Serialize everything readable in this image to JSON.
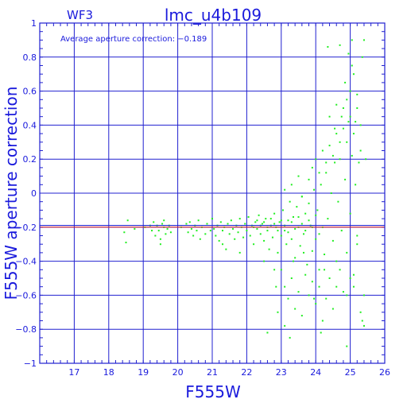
{
  "colors": {
    "frame": "#2020d0",
    "grid": "#2020d0",
    "text": "#1a1adc",
    "points": "#22ee22",
    "reference_line": "#e02020",
    "mean_line": "#2020d0"
  },
  "chart_data": {
    "type": "scatter",
    "header_left": "WF3",
    "title": "lmc_u4b109",
    "annotation": "Average aperture correction: −0.189",
    "xlabel": "F555W",
    "ylabel": "F555W aperture correction",
    "xlim": [
      16,
      26
    ],
    "ylim": [
      -1,
      1
    ],
    "xticks": [
      17,
      18,
      19,
      20,
      21,
      22,
      23,
      24,
      25,
      26
    ],
    "yticks": [
      -1,
      -0.8,
      -0.6,
      -0.4,
      -0.2,
      0,
      0.2,
      0.4,
      0.6,
      0.8,
      1
    ],
    "xtick_labels": [
      "17",
      "18",
      "19",
      "20",
      "21",
      "22",
      "23",
      "24",
      "25",
      "26"
    ],
    "ytick_labels": [
      "−1",
      "−0.8",
      "−0.6",
      "−0.4",
      "−0.2",
      "0",
      "0.2",
      "0.4",
      "0.6",
      "0.8",
      "1"
    ],
    "grid": true,
    "reference_lines": [
      {
        "y": -0.189,
        "color": "#2020d0"
      },
      {
        "y": -0.2,
        "color": "#e02020"
      }
    ],
    "points": [
      [
        18.45,
        -0.23
      ],
      [
        18.5,
        -0.29
      ],
      [
        18.55,
        -0.16
      ],
      [
        18.75,
        -0.21
      ],
      [
        19.05,
        -0.2
      ],
      [
        19.2,
        -0.19
      ],
      [
        19.25,
        -0.22
      ],
      [
        19.3,
        -0.17
      ],
      [
        19.35,
        -0.25
      ],
      [
        19.4,
        -0.19
      ],
      [
        19.45,
        -0.22
      ],
      [
        19.5,
        -0.27
      ],
      [
        19.55,
        -0.18
      ],
      [
        19.6,
        -0.2
      ],
      [
        19.65,
        -0.24
      ],
      [
        19.7,
        -0.21
      ],
      [
        19.75,
        -0.19
      ],
      [
        19.8,
        -0.23
      ],
      [
        19.5,
        -0.3
      ],
      [
        19.6,
        -0.16
      ],
      [
        20.1,
        -0.2
      ],
      [
        20.25,
        -0.18
      ],
      [
        20.3,
        -0.23
      ],
      [
        20.35,
        -0.17
      ],
      [
        20.4,
        -0.21
      ],
      [
        20.45,
        -0.25
      ],
      [
        20.5,
        -0.19
      ],
      [
        20.55,
        -0.22
      ],
      [
        20.6,
        -0.16
      ],
      [
        20.65,
        -0.27
      ],
      [
        20.7,
        -0.2
      ],
      [
        20.8,
        -0.24
      ],
      [
        20.85,
        -0.18
      ],
      [
        20.95,
        -0.22
      ],
      [
        21.0,
        -0.15
      ],
      [
        21.05,
        -0.21
      ],
      [
        21.1,
        -0.25
      ],
      [
        21.15,
        -0.19
      ],
      [
        21.2,
        -0.28
      ],
      [
        21.25,
        -0.17
      ],
      [
        21.3,
        -0.22
      ],
      [
        21.35,
        -0.2
      ],
      [
        21.4,
        -0.33
      ],
      [
        21.45,
        -0.18
      ],
      [
        21.5,
        -0.24
      ],
      [
        21.55,
        -0.16
      ],
      [
        21.6,
        -0.21
      ],
      [
        21.65,
        -0.27
      ],
      [
        21.7,
        -0.19
      ],
      [
        21.75,
        -0.23
      ],
      [
        21.8,
        -0.15
      ],
      [
        21.85,
        -0.2
      ],
      [
        21.9,
        -0.26
      ],
      [
        21.95,
        -0.18
      ],
      [
        22.0,
        -0.22
      ],
      [
        22.05,
        -0.14
      ],
      [
        22.1,
        -0.25
      ],
      [
        22.15,
        -0.19
      ],
      [
        22.2,
        -0.3
      ],
      [
        22.25,
        -0.17
      ],
      [
        22.3,
        -0.21
      ],
      [
        22.35,
        -0.13
      ],
      [
        22.4,
        -0.24
      ],
      [
        22.45,
        -0.18
      ],
      [
        22.5,
        -0.28
      ],
      [
        22.55,
        -0.15
      ],
      [
        22.6,
        -0.22
      ],
      [
        22.65,
        -0.33
      ],
      [
        22.7,
        -0.19
      ],
      [
        22.75,
        -0.26
      ],
      [
        22.8,
        -0.12
      ],
      [
        22.85,
        -0.2
      ],
      [
        22.9,
        -0.35
      ],
      [
        22.95,
        -0.17
      ],
      [
        23.0,
        -0.25
      ],
      [
        23.05,
        -0.1
      ],
      [
        23.1,
        -0.22
      ],
      [
        23.15,
        -0.3
      ],
      [
        23.2,
        -0.16
      ],
      [
        23.25,
        -0.05
      ],
      [
        23.3,
        -0.27
      ],
      [
        23.35,
        -0.14
      ],
      [
        23.4,
        -0.38
      ],
      [
        23.45,
        -0.08
      ],
      [
        23.5,
        -0.2
      ],
      [
        23.55,
        -0.31
      ],
      [
        23.6,
        -0.02
      ],
      [
        23.65,
        -0.24
      ],
      [
        23.7,
        -0.12
      ],
      [
        23.75,
        -0.42
      ],
      [
        23.8,
        -0.06
      ],
      [
        23.85,
        -0.19
      ],
      [
        23.9,
        -0.34
      ],
      [
        23.95,
        0.02
      ],
      [
        24.0,
        -0.27
      ],
      [
        24.05,
        -0.1
      ],
      [
        24.1,
        -0.45
      ],
      [
        24.15,
        0.05
      ],
      [
        24.2,
        -0.2
      ],
      [
        24.25,
        -0.36
      ],
      [
        24.3,
        0.12
      ],
      [
        24.35,
        -0.15
      ],
      [
        24.4,
        -0.5
      ],
      [
        24.45,
        0.0
      ],
      [
        24.5,
        -0.28
      ],
      [
        24.55,
        0.18
      ],
      [
        24.6,
        -0.4
      ],
      [
        24.65,
        -0.05
      ],
      [
        24.7,
        0.3
      ],
      [
        24.75,
        -0.22
      ],
      [
        24.8,
        -0.58
      ],
      [
        24.85,
        0.08
      ],
      [
        24.9,
        -0.35
      ],
      [
        24.95,
        0.42
      ],
      [
        25.0,
        -0.12
      ],
      [
        25.05,
        0.22
      ],
      [
        25.1,
        -0.48
      ],
      [
        25.15,
        0.05
      ],
      [
        25.2,
        -0.3
      ],
      [
        25.25,
        0.18
      ],
      [
        22.2,
        -0.2
      ],
      [
        22.3,
        -0.16
      ],
      [
        22.4,
        -0.19
      ],
      [
        22.5,
        -0.17
      ],
      [
        22.6,
        -0.2
      ],
      [
        22.7,
        -0.15
      ],
      [
        22.8,
        -0.18
      ],
      [
        22.9,
        -0.22
      ],
      [
        23.0,
        -0.16
      ],
      [
        23.1,
        -0.19
      ],
      [
        23.2,
        -0.23
      ],
      [
        23.3,
        -0.17
      ],
      [
        23.4,
        -0.21
      ],
      [
        23.5,
        -0.14
      ],
      [
        23.6,
        -0.18
      ],
      [
        23.7,
        -0.22
      ],
      [
        23.8,
        -0.16
      ],
      [
        23.9,
        -0.2
      ],
      [
        24.0,
        -0.13
      ],
      [
        24.1,
        -0.24
      ],
      [
        23.0,
        -0.45
      ],
      [
        23.1,
        -0.55
      ],
      [
        23.2,
        -0.62
      ],
      [
        23.3,
        -0.5
      ],
      [
        23.4,
        -0.68
      ],
      [
        23.5,
        -0.58
      ],
      [
        23.6,
        -0.72
      ],
      [
        23.7,
        -0.48
      ],
      [
        23.8,
        -0.6
      ],
      [
        23.9,
        -0.52
      ],
      [
        24.0,
        -0.65
      ],
      [
        24.1,
        -0.55
      ],
      [
        24.2,
        -0.75
      ],
      [
        24.3,
        -0.62
      ],
      [
        24.5,
        -0.68
      ],
      [
        24.7,
        -0.45
      ],
      [
        24.9,
        -0.6
      ],
      [
        25.1,
        -0.55
      ],
      [
        25.3,
        -0.7
      ],
      [
        23.95,
        -0.62
      ],
      [
        23.1,
        0.02
      ],
      [
        23.3,
        0.05
      ],
      [
        23.5,
        0.1
      ],
      [
        23.6,
        -0.02
      ],
      [
        23.8,
        0.08
      ],
      [
        23.9,
        0.15
      ],
      [
        24.0,
        0.2
      ],
      [
        24.1,
        0.12
      ],
      [
        24.2,
        0.25
      ],
      [
        24.3,
        0.18
      ],
      [
        24.4,
        0.28
      ],
      [
        24.5,
        0.22
      ],
      [
        24.6,
        0.35
      ],
      [
        24.7,
        0.2
      ],
      [
        24.8,
        0.38
      ],
      [
        24.9,
        0.3
      ],
      [
        25.0,
        0.45
      ],
      [
        25.1,
        0.35
      ],
      [
        25.2,
        0.5
      ],
      [
        25.3,
        0.4
      ],
      [
        24.8,
        0.5
      ],
      [
        24.9,
        0.55
      ],
      [
        25.0,
        0.6
      ],
      [
        24.85,
        0.65
      ],
      [
        25.05,
        0.75
      ],
      [
        24.95,
        0.82
      ],
      [
        25.1,
        0.7
      ],
      [
        25.35,
        0.8
      ],
      [
        24.35,
        0.86
      ],
      [
        24.7,
        0.87
      ],
      [
        25.2,
        0.58
      ],
      [
        25.15,
        0.42
      ],
      [
        25.4,
        0.9
      ],
      [
        24.6,
        0.52
      ],
      [
        24.75,
        0.45
      ],
      [
        24.4,
        0.45
      ],
      [
        24.55,
        0.38
      ],
      [
        25.3,
        0.25
      ],
      [
        25.45,
        0.2
      ],
      [
        25.05,
        0.9
      ],
      [
        21.3,
        -0.3
      ],
      [
        21.8,
        -0.35
      ],
      [
        22.5,
        -0.4
      ],
      [
        22.8,
        -0.45
      ],
      [
        22.85,
        -0.55
      ],
      [
        22.9,
        -0.7
      ],
      [
        23.1,
        -0.78
      ],
      [
        23.25,
        -0.85
      ],
      [
        24.15,
        -0.82
      ],
      [
        24.9,
        -0.9
      ],
      [
        25.4,
        -0.78
      ],
      [
        25.35,
        -0.75
      ],
      [
        25.0,
        -0.5
      ],
      [
        25.4,
        -0.6
      ],
      [
        24.6,
        -0.55
      ],
      [
        22.6,
        -0.82
      ],
      [
        23.35,
        -0.4
      ],
      [
        24.25,
        -0.45
      ],
      [
        23.65,
        -0.35
      ],
      [
        25.2,
        -0.25
      ]
    ]
  }
}
